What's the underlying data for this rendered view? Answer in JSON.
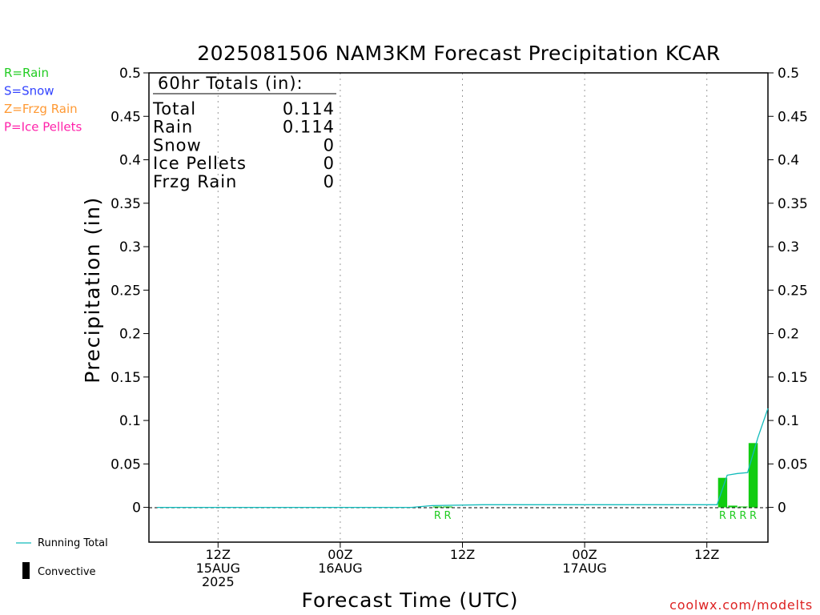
{
  "chart_data": {
    "type": "bar",
    "title": "2025081506 NAM3KM Forecast Precipitation KCAR",
    "xlabel": "Forecast Time (UTC)",
    "ylabel": "Precipitation (in)",
    "credit": "coolwx.com/modelts",
    "ylim": [
      -0.04,
      0.5
    ],
    "yticks": [
      0,
      0.05,
      0.1,
      0.15,
      0.2,
      0.25,
      0.3,
      0.35,
      0.4,
      0.45,
      0.5
    ],
    "ytick_labels": [
      "0",
      "0.05",
      "0.1",
      "0.15",
      "0.2",
      "0.25",
      "0.3",
      "0.35",
      "0.4",
      "0.45",
      "0.5"
    ],
    "xlim": [
      "2025-08-15T06Z",
      "2025-08-17T18Z"
    ],
    "xticks": [
      {
        "time": "2025-08-15T12Z",
        "lines": [
          "12Z",
          "15AUG",
          "2025"
        ]
      },
      {
        "time": "2025-08-16T00Z",
        "lines": [
          "00Z",
          "16AUG"
        ]
      },
      {
        "time": "2025-08-16T12Z",
        "lines": [
          "12Z"
        ]
      },
      {
        "time": "2025-08-17T00Z",
        "lines": [
          "00Z",
          "17AUG"
        ]
      },
      {
        "time": "2025-08-17T12Z",
        "lines": [
          "12Z"
        ]
      }
    ],
    "grid": "vertical dotted at x ticks",
    "ptype_legend": [
      {
        "label": "R=Rain",
        "color": "#22cc22"
      },
      {
        "label": "S=Snow",
        "color": "#3344ff"
      },
      {
        "label": "Z=Frzg Rain",
        "color": "#ff9933"
      },
      {
        "label": "P=Ice Pellets",
        "color": "#ff22aa"
      }
    ],
    "series_legend": {
      "running_total_label": "Running Total",
      "convective_label": "Convective"
    },
    "totals": {
      "header": "60hr Totals (in):",
      "rows": [
        {
          "label": "Total",
          "value": "0.114"
        },
        {
          "label": "Rain",
          "value": "0.114"
        },
        {
          "label": "Snow",
          "value": "0"
        },
        {
          "label": "Ice Pellets",
          "value": "0"
        },
        {
          "label": "Frzg Rain",
          "value": "0"
        }
      ]
    },
    "series": [
      {
        "name": "Running Total",
        "type": "line",
        "color": "#11bbbb",
        "points": [
          [
            "2025-08-15T06Z",
            0.0
          ],
          [
            "2025-08-16T07Z",
            0.0
          ],
          [
            "2025-08-16T09Z",
            0.002
          ],
          [
            "2025-08-16T14Z",
            0.003
          ],
          [
            "2025-08-17T13Z",
            0.003
          ],
          [
            "2025-08-17T14Z",
            0.037
          ],
          [
            "2025-08-17T15Z",
            0.039
          ],
          [
            "2025-08-17T16Z",
            0.04
          ],
          [
            "2025-08-17T17Z",
            0.08
          ],
          [
            "2025-08-17T18Z",
            0.114
          ]
        ]
      },
      {
        "name": "Rain",
        "type": "bar",
        "color": "#11cc11",
        "points": [
          [
            "2025-08-16T10Z",
            0.001
          ],
          [
            "2025-08-16T11Z",
            0.001
          ],
          [
            "2025-08-17T14Z",
            0.034
          ],
          [
            "2025-08-17T15Z",
            0.002
          ],
          [
            "2025-08-17T16Z",
            0.001
          ],
          [
            "2025-08-17T17Z",
            0.074
          ]
        ]
      }
    ],
    "ptype_markers": [
      {
        "time": "2025-08-16T10Z",
        "label": "R"
      },
      {
        "time": "2025-08-16T11Z",
        "label": "R"
      },
      {
        "time": "2025-08-17T14Z",
        "label": "R"
      },
      {
        "time": "2025-08-17T15Z",
        "label": "R"
      },
      {
        "time": "2025-08-17T16Z",
        "label": "R"
      },
      {
        "time": "2025-08-17T17Z",
        "label": "R"
      }
    ]
  }
}
